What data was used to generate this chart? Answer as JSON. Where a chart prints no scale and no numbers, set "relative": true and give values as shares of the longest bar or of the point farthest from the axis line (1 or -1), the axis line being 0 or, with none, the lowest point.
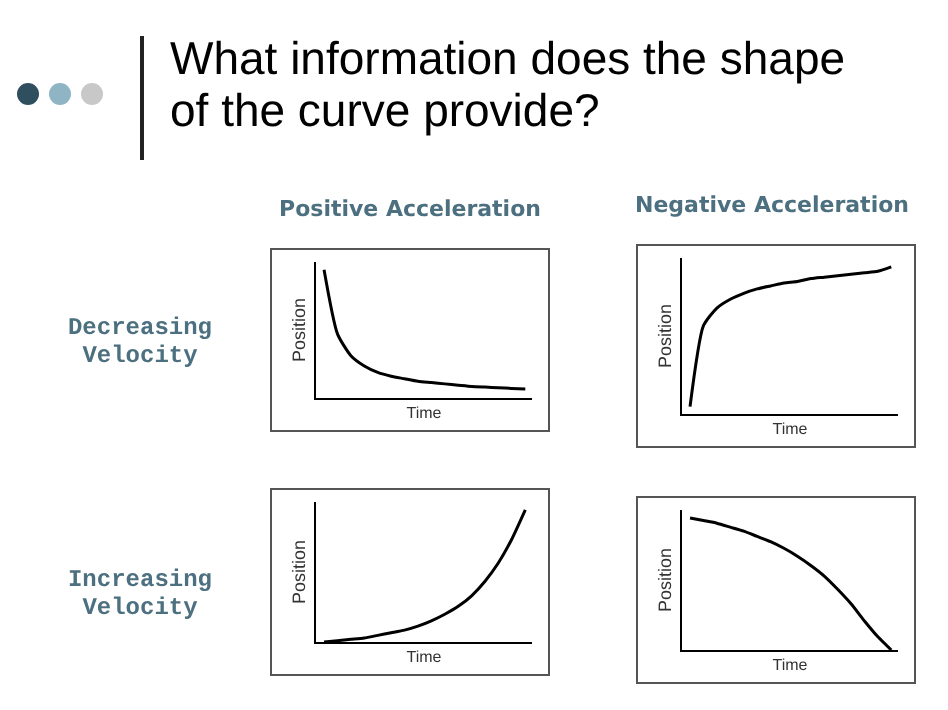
{
  "chart_data": [
    {
      "type": "line",
      "relative": true,
      "xlabel": "Time",
      "ylabel": "Position",
      "grid": false,
      "color": "#000000",
      "annotations": [
        "What information does the shape of the curve provide?",
        "Positive Acceleration",
        "Decreasing Velocity"
      ],
      "categories": [
        null,
        null,
        null,
        null,
        null,
        null,
        null,
        null,
        null,
        null,
        null,
        null,
        null,
        null,
        null,
        null
      ],
      "values": [
        1,
        0.5,
        0.33,
        0.25,
        0.2,
        0.17,
        0.15,
        0.13,
        0.12,
        0.11,
        0.1,
        0.09,
        0.085,
        0.08,
        0.075,
        0.07
      ]
    },
    {
      "type": "line",
      "relative": true,
      "xlabel": "Time",
      "ylabel": "Position",
      "grid": false,
      "color": "#000000",
      "annotations": [
        "Negative Acceleration"
      ],
      "categories": [
        null,
        null,
        null,
        null,
        null,
        null,
        null,
        null,
        null,
        null,
        null,
        null,
        null,
        null,
        null,
        null
      ],
      "values": [
        0.05,
        0.6,
        0.72,
        0.78,
        0.82,
        0.85,
        0.87,
        0.89,
        0.9,
        0.92,
        0.93,
        0.94,
        0.95,
        0.96,
        0.97,
        1
      ]
    },
    {
      "type": "line",
      "relative": true,
      "xlabel": "Time",
      "ylabel": "Position",
      "grid": false,
      "color": "#000000",
      "annotations": [
        "Increasing Velocity"
      ],
      "categories": [
        null,
        null,
        null,
        null,
        null,
        null,
        null,
        null,
        null,
        null,
        null,
        null,
        null,
        null,
        null,
        null
      ],
      "values": [
        0,
        0.01,
        0.02,
        0.03,
        0.05,
        0.07,
        0.09,
        0.12,
        0.16,
        0.21,
        0.27,
        0.35,
        0.46,
        0.6,
        0.78,
        1
      ]
    },
    {
      "type": "line",
      "relative": true,
      "xlabel": "Time",
      "ylabel": "Position",
      "grid": false,
      "color": "#000000",
      "categories": [
        null,
        null,
        null,
        null,
        null,
        null,
        null,
        null,
        null,
        null,
        null,
        null,
        null,
        null,
        null,
        null
      ],
      "values": [
        1,
        0.98,
        0.96,
        0.93,
        0.9,
        0.86,
        0.82,
        0.77,
        0.71,
        0.64,
        0.56,
        0.46,
        0.35,
        0.22,
        0.1,
        0
      ]
    }
  ]
}
